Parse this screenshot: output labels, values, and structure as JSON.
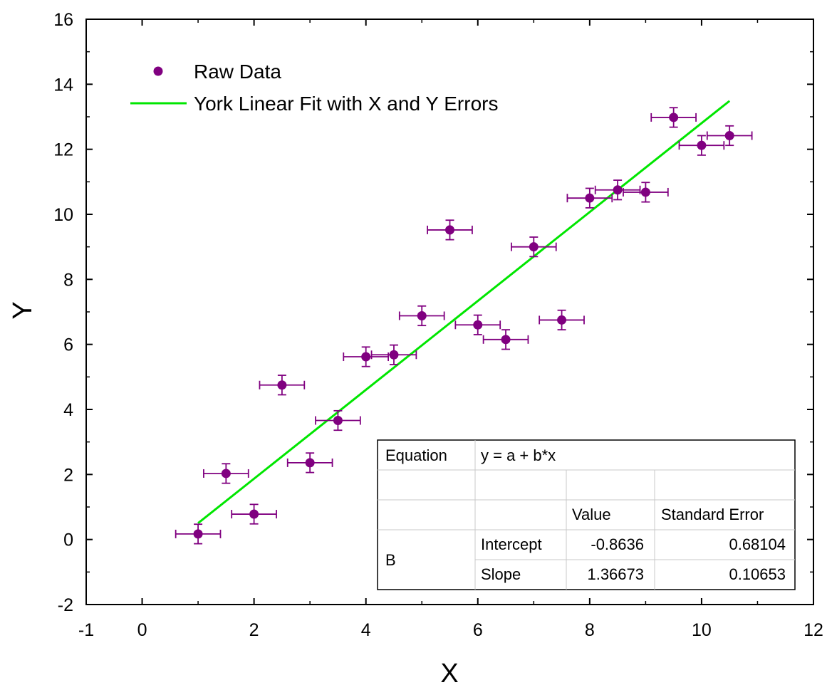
{
  "chart_data": {
    "type": "scatter",
    "xlabel": "X",
    "ylabel": "Y",
    "xlim": [
      -1,
      12
    ],
    "ylim": [
      -2,
      16
    ],
    "xticks": [
      -1,
      0,
      2,
      4,
      6,
      8,
      10,
      12
    ],
    "yticks": [
      -2,
      0,
      2,
      4,
      6,
      8,
      10,
      12,
      14,
      16
    ],
    "grid": false,
    "legend_placement": "top-left",
    "colors": {
      "points": "#800080",
      "fit": "#00e600",
      "frame": "#000000",
      "table_grid": "#c8c8c8"
    },
    "series": [
      {
        "name": "Raw Data",
        "x": [
          1.0,
          1.5,
          2.0,
          2.5,
          3.0,
          3.5,
          4.0,
          4.5,
          5.0,
          5.5,
          6.0,
          6.5,
          7.0,
          7.5,
          8.0,
          8.5,
          9.0,
          9.5,
          10.0,
          10.5
        ],
        "y": [
          0.17,
          2.03,
          0.78,
          4.75,
          2.36,
          3.66,
          5.62,
          5.68,
          6.88,
          9.52,
          6.6,
          6.15,
          9.0,
          6.75,
          10.5,
          10.75,
          10.68,
          12.98,
          12.12,
          12.42
        ],
        "x_error": [
          0.4,
          0.4,
          0.4,
          0.4,
          0.4,
          0.4,
          0.4,
          0.4,
          0.4,
          0.4,
          0.4,
          0.4,
          0.4,
          0.4,
          0.4,
          0.4,
          0.4,
          0.4,
          0.4,
          0.4
        ],
        "y_error": [
          0.3,
          0.3,
          0.3,
          0.3,
          0.3,
          0.3,
          0.3,
          0.3,
          0.3,
          0.3,
          0.3,
          0.3,
          0.3,
          0.3,
          0.3,
          0.3,
          0.3,
          0.3,
          0.3,
          0.3
        ]
      },
      {
        "name": "York Linear Fit with X and Y Errors",
        "type": "line",
        "x": [
          1.0,
          10.5
        ],
        "y": [
          0.503,
          13.487
        ]
      }
    ],
    "results_table": {
      "equation_label": "Equation",
      "equation": "y = a + b*x",
      "header_value": "Value",
      "header_error": "Standard Error",
      "group": "B",
      "rows": [
        {
          "param": "Intercept",
          "value": "-0.8636",
          "error": "0.68104"
        },
        {
          "param": "Slope",
          "value": "1.36673",
          "error": "0.10653"
        }
      ]
    }
  }
}
